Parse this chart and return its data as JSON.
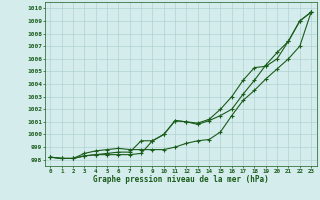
{
  "x": [
    0,
    1,
    2,
    3,
    4,
    5,
    6,
    7,
    8,
    9,
    10,
    11,
    12,
    13,
    14,
    15,
    16,
    17,
    18,
    19,
    20,
    21,
    22,
    23
  ],
  "line1": [
    998.2,
    998.1,
    998.1,
    998.3,
    998.4,
    998.4,
    998.4,
    998.4,
    998.5,
    999.5,
    1000.0,
    1001.1,
    1001.0,
    1000.8,
    1001.1,
    1001.5,
    1002.0,
    1003.2,
    1004.3,
    1005.5,
    1006.5,
    1007.4,
    1009.0,
    1009.7
  ],
  "line2": [
    998.2,
    998.1,
    998.1,
    998.3,
    998.4,
    998.5,
    998.6,
    998.6,
    999.5,
    999.5,
    1000.0,
    1001.1,
    1001.0,
    1000.9,
    1001.2,
    1002.0,
    1003.0,
    1004.3,
    1005.3,
    1005.4,
    1006.0,
    1007.4,
    1009.0,
    1009.7
  ],
  "line3": [
    998.2,
    998.1,
    998.1,
    998.5,
    998.7,
    998.8,
    998.9,
    998.8,
    998.8,
    998.8,
    998.8,
    999.0,
    999.3,
    999.5,
    999.6,
    1000.2,
    1001.5,
    1002.7,
    1003.5,
    1004.4,
    1005.2,
    1006.0,
    1007.0,
    1009.7
  ],
  "ylim": [
    997.5,
    1010.5
  ],
  "yticks": [
    998,
    999,
    1000,
    1001,
    1002,
    1003,
    1004,
    1005,
    1006,
    1007,
    1008,
    1009,
    1010
  ],
  "xlim": [
    -0.5,
    23.5
  ],
  "xlabel": "Graphe pression niveau de la mer (hPa)",
  "bg_color": "#d4ecec",
  "line_color": "#1a5c1a",
  "grid_color": "#aacccc"
}
